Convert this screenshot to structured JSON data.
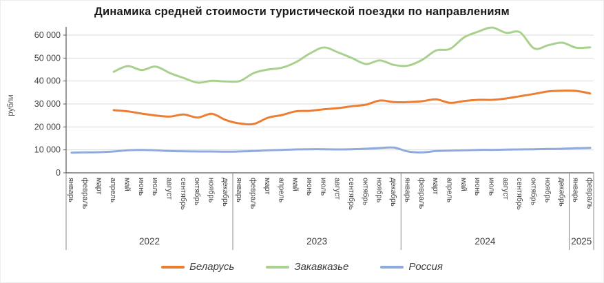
{
  "chart_data": {
    "type": "line",
    "title": "Динамика средней стоимости туристической поездки по направлениям",
    "ylabel": "рубли",
    "xlabel": "",
    "ylim": [
      0,
      60000
    ],
    "ytick_step": 10000,
    "ytick_labels": [
      "0",
      "10 000",
      "20 000",
      "30 000",
      "40 000",
      "50 000",
      "60 000"
    ],
    "grid": true,
    "legend_position": "bottom",
    "x_months": [
      "январь",
      "февраль",
      "март",
      "апрель",
      "май",
      "июнь",
      "июль",
      "август",
      "сентябрь",
      "октябрь",
      "ноябрь",
      "декабрь",
      "январь",
      "февраль",
      "март",
      "апрель",
      "май",
      "июнь",
      "июль",
      "август",
      "сентябрь",
      "октябрь",
      "ноябрь",
      "декабрь",
      "январь",
      "февраль",
      "март",
      "апрель",
      "май",
      "июнь",
      "июль",
      "август",
      "сентябрь",
      "октябрь",
      "ноябрь",
      "декабрь",
      "январь",
      "февраль"
    ],
    "years": [
      {
        "label": "2022",
        "count": 12
      },
      {
        "label": "2023",
        "count": 12
      },
      {
        "label": "2024",
        "count": 12
      },
      {
        "label": "2025",
        "count": 2
      }
    ],
    "series": [
      {
        "key": "belarus",
        "name": "Беларусь",
        "color": "#ED7D31",
        "values": [
          null,
          null,
          null,
          27300,
          26800,
          25800,
          25000,
          24500,
          25400,
          24100,
          25700,
          23000,
          21500,
          21300,
          24000,
          25200,
          26800,
          27000,
          27700,
          28200,
          29000,
          29700,
          31500,
          30800,
          30800,
          31200,
          32000,
          30500,
          31300,
          31800,
          31800,
          32400,
          33400,
          34400,
          35500,
          35800,
          35700,
          34600
        ]
      },
      {
        "key": "zakavkazye",
        "name": "Закавказье",
        "color": "#A9D18E",
        "values": [
          null,
          null,
          null,
          44000,
          46500,
          44800,
          46300,
          43500,
          41300,
          39300,
          40100,
          39800,
          40000,
          43500,
          45000,
          45800,
          48200,
          52000,
          54600,
          52500,
          50000,
          47400,
          49000,
          47000,
          46700,
          49200,
          53300,
          54000,
          59000,
          61500,
          63300,
          61000,
          61200,
          54200,
          55600,
          56700,
          54500,
          54700
        ]
      },
      {
        "key": "russia",
        "name": "Россия",
        "color": "#8FAADC",
        "values": [
          8800,
          8900,
          9000,
          9300,
          9800,
          10000,
          9800,
          9500,
          9400,
          9300,
          9300,
          9200,
          9300,
          9500,
          9800,
          10000,
          10200,
          10300,
          10300,
          10200,
          10300,
          10500,
          10800,
          11000,
          9300,
          8900,
          9500,
          9700,
          9800,
          10000,
          10000,
          10100,
          10200,
          10300,
          10400,
          10500,
          10700,
          10900
        ]
      }
    ],
    "colors": {
      "gridline": "#D9D9D9",
      "axis": "#595959",
      "divider": "#898989",
      "tick_text": "#404040",
      "title_text": "#1b1b1b"
    }
  }
}
